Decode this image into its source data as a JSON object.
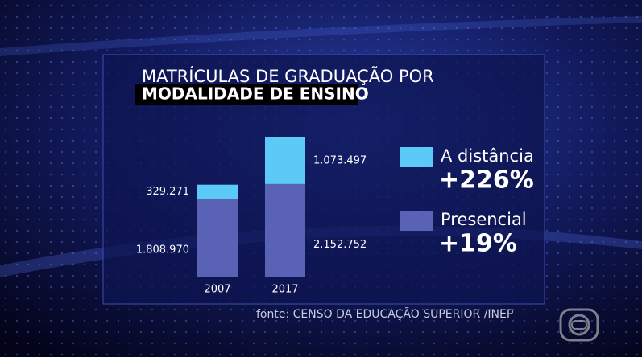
{
  "chart_data": {
    "type": "stacked-bar",
    "title": "MATRÍCULAS DE GRADUAÇÃO POR",
    "subtitle": "MODALIDADE DE ENSINO",
    "categories": [
      "2007",
      "2017"
    ],
    "series": [
      {
        "name": "Presencial",
        "color": "#5a62b6",
        "values": [
          1808970,
          2152752
        ],
        "value_labels": [
          "1.808.970",
          "2.152.752"
        ],
        "growth": "+19%"
      },
      {
        "name": "A distância",
        "color": "#5ccaf6",
        "values": [
          329271,
          1073497
        ],
        "value_labels": [
          "329.271",
          "1.073.497"
        ],
        "growth": "+226%"
      }
    ],
    "source": "fonte: CENSO DA EDUCAÇÃO SUPERIOR /INEP"
  }
}
